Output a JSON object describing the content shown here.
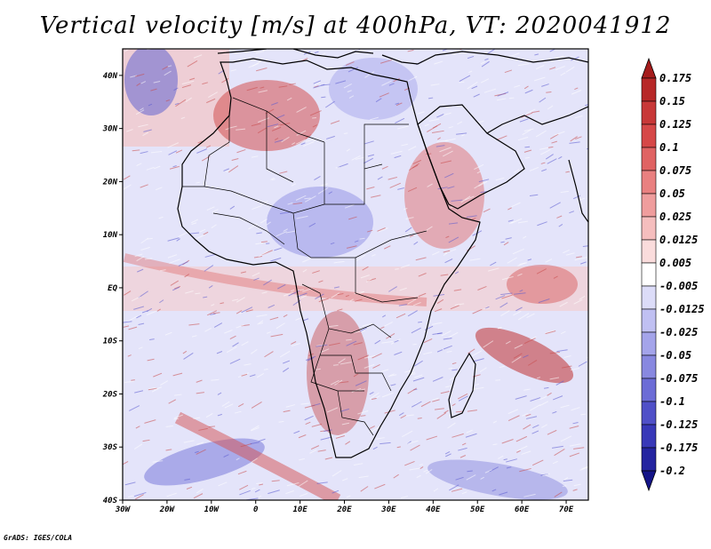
{
  "title": "Vertical velocity [m/s] at 400hPa, VT: 2020041912",
  "credit": "GrADS: IGES/COLA",
  "map": {
    "lon_range": [
      -30,
      75
    ],
    "lat_range": [
      -40,
      45
    ],
    "lon_ticks": [
      "30W",
      "20W",
      "10W",
      "0",
      "10E",
      "20E",
      "30E",
      "40E",
      "50E",
      "60E",
      "70E"
    ],
    "lat_ticks": [
      "40N",
      "30N",
      "20N",
      "10N",
      "EQ",
      "10S",
      "20S",
      "30S",
      "40S"
    ]
  },
  "colorbar": {
    "labels": [
      "0.175",
      "0.15",
      "0.125",
      "0.1",
      "0.075",
      "0.05",
      "0.025",
      "0.0125",
      "0.005",
      "-0.005",
      "-0.0125",
      "-0.025",
      "-0.05",
      "-0.075",
      "-0.1",
      "-0.125",
      "-0.175",
      "-0.2"
    ],
    "colors": [
      "#a51c1c",
      "#b72828",
      "#c83838",
      "#d64848",
      "#e06363",
      "#e98080",
      "#ef9d9d",
      "#f5bebe",
      "#fadcdc",
      "#ffffff",
      "#dcdcf8",
      "#c0c0f2",
      "#a4a4ea",
      "#8888e0",
      "#6c6cd6",
      "#5050c8",
      "#3838b8",
      "#2424a0",
      "#141488"
    ]
  },
  "colors": {
    "positive": "#c83838",
    "negative": "#5050c8",
    "land": "#000000"
  }
}
